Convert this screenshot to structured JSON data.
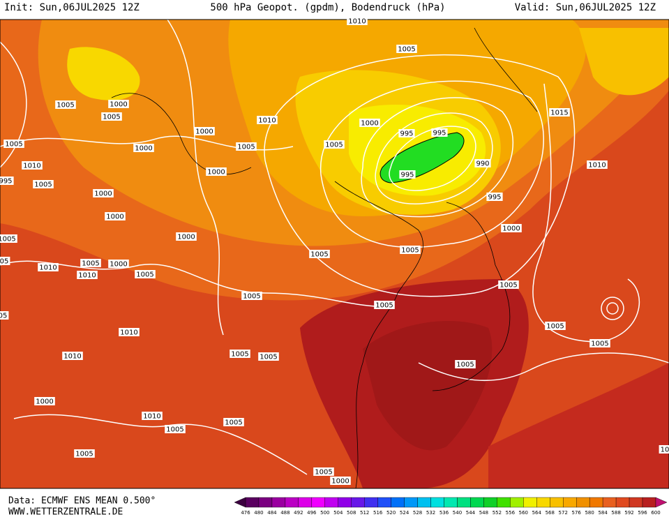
{
  "header": {
    "init": "Init: Sun,06JUL2025 12Z",
    "title": "500 hPa Geopot. (gpdm), Bodendruck (hPa)",
    "valid": "Valid: Sun,06JUL2025 12Z"
  },
  "isobar_labels": [
    "1010",
    "1005",
    "1005",
    "1000",
    "1005",
    "1010",
    "1000",
    "1000",
    "995",
    "995",
    "1005",
    "1005",
    "1005",
    "1000",
    "1010",
    "990",
    "995",
    "1000",
    "995",
    "1005",
    "1015",
    "1010",
    "1000",
    "995",
    "1000",
    "1000",
    "1000",
    "1005",
    "1005",
    "1005",
    "1005",
    "1000",
    "1010",
    "05",
    "1010",
    "1005",
    "1005",
    "1005",
    "1005",
    "05",
    "1010",
    "1005",
    "1005",
    "1005",
    "1005",
    "1010",
    "1005",
    "1000",
    "1010",
    "1005",
    "1005",
    "1005",
    "1005",
    "1000",
    "10"
  ],
  "colorbar": {
    "labels": [
      476,
      480,
      484,
      488,
      492,
      496,
      500,
      504,
      508,
      512,
      516,
      520,
      524,
      528,
      532,
      536,
      540,
      544,
      548,
      552,
      556,
      560,
      564,
      568,
      572,
      576,
      580,
      584,
      588,
      592,
      596,
      600
    ],
    "colors": [
      "#3c0040",
      "#5a0060",
      "#7a0080",
      "#9a00a0",
      "#bb00c4",
      "#dd00e8",
      "#f000ff",
      "#c000f0",
      "#9000e8",
      "#6818e8",
      "#4030f0",
      "#2050f8",
      "#0070f8",
      "#0098f8",
      "#00c0f0",
      "#00e0e0",
      "#00e8b0",
      "#00e080",
      "#00d850",
      "#10d028",
      "#40e000",
      "#a0f000",
      "#f0f000",
      "#f8d800",
      "#f8c000",
      "#f8a800",
      "#f09000",
      "#f07800",
      "#e86020",
      "#e04a20",
      "#d03822",
      "#b82020",
      "#a01818",
      "#880810",
      "#c01070"
    ]
  },
  "footer": {
    "data": "Data: ECMWF ENS MEAN 0.500°",
    "site": "WWW.WETTERZENTRALE.DE"
  }
}
